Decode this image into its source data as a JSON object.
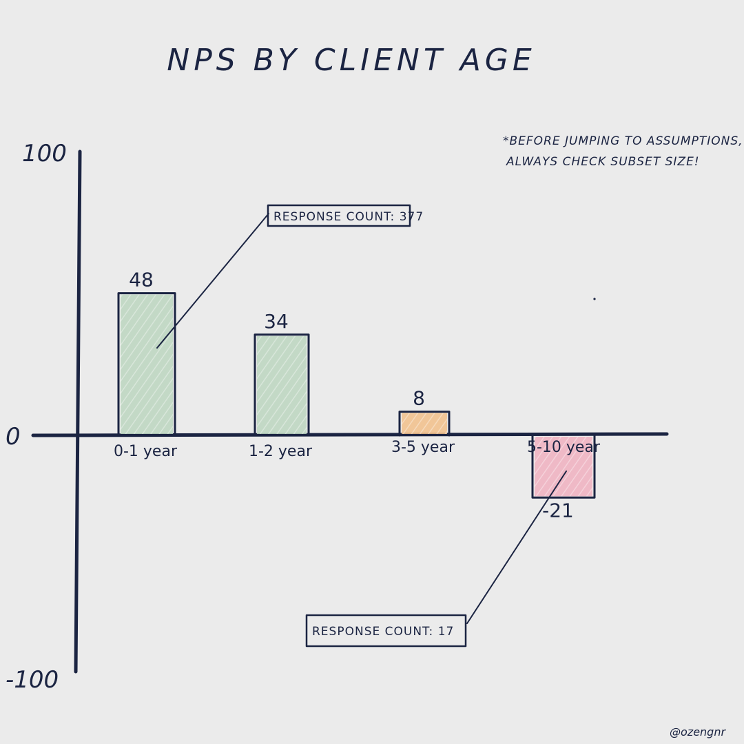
{
  "chart_data": {
    "type": "bar",
    "title": "NPS BY CLIENT AGE",
    "categories": [
      "0-1 year",
      "1-2 year",
      "3-5 year",
      "5-10 year"
    ],
    "values": [
      48,
      34,
      8,
      -21
    ],
    "value_labels": [
      "48",
      "34",
      "8",
      "-21"
    ],
    "ylim": [
      -100,
      100
    ],
    "y_ticks": [
      "100",
      "0",
      "-100"
    ],
    "grid": false,
    "colors": [
      "#bcd6c0",
      "#bcd6c0",
      "#f2c08a",
      "#f0b0c0"
    ],
    "annotations": [
      {
        "text": "RESPONSE COUNT: 377",
        "target": "0-1 year"
      },
      {
        "text": "RESPONSE COUNT: 17",
        "target": "5-10 year"
      }
    ],
    "note_lines": [
      "*BEFORE JUMPING TO ASSUMPTIONS,",
      "ALWAYS CHECK SUBSET SIZE!"
    ]
  },
  "credit": "@ozengnr"
}
